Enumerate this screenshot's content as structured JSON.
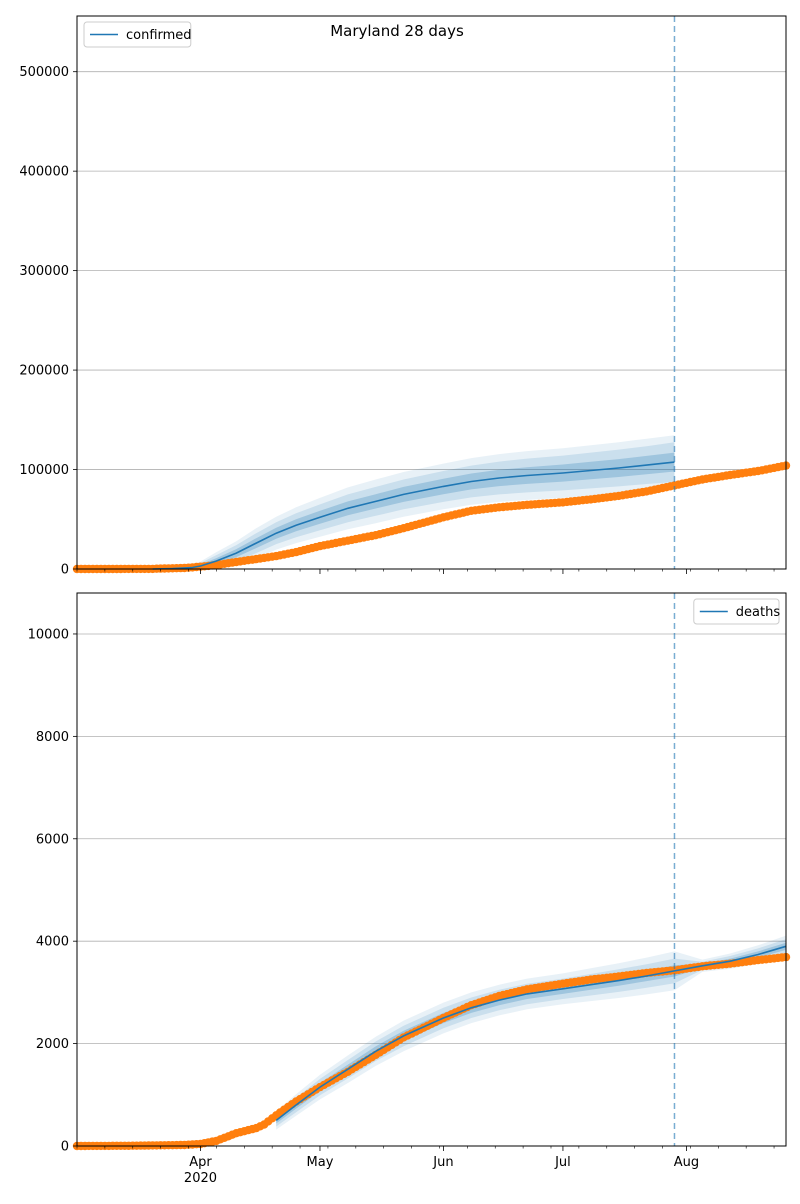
{
  "figure": {
    "title": "Maryland 28 days"
  },
  "chart_data": [
    {
      "type": "line",
      "panel": "top",
      "title": "Maryland 28 days",
      "legend": {
        "label": "confirmed",
        "placement": "top-left"
      },
      "x_axis": {
        "type": "date",
        "range": [
          "2020-03-01",
          "2020-08-26"
        ],
        "tick_labels": [
          "Apr\n2020",
          "May",
          "Jun",
          "Jul",
          "Aug"
        ],
        "tick_dates": [
          "2020-04-01",
          "2020-05-01",
          "2020-06-01",
          "2020-07-01",
          "2020-08-01"
        ]
      },
      "ylim": [
        0,
        556000
      ],
      "yticks": [
        "0",
        "100000",
        "200000",
        "300000",
        "400000",
        "500000"
      ],
      "ytick_values": [
        0,
        100000,
        200000,
        300000,
        400000,
        500000
      ],
      "grid": "horizontal",
      "vline_date": "2020-07-29",
      "colors": {
        "model": "#1f77b4",
        "observed": "#ff7f0e",
        "band": "#1f77b4",
        "vline": "#1f77b4"
      },
      "series": [
        {
          "name": "confirmed",
          "role": "model",
          "dates": [
            "2020-03-20",
            "2020-03-25",
            "2020-03-30",
            "2020-04-01",
            "2020-04-05",
            "2020-04-10",
            "2020-04-15",
            "2020-04-20",
            "2020-04-25",
            "2020-05-01",
            "2020-05-08",
            "2020-05-15",
            "2020-05-22",
            "2020-06-01",
            "2020-06-08",
            "2020-06-15",
            "2020-06-22",
            "2020-07-01",
            "2020-07-08",
            "2020-07-15",
            "2020-07-22",
            "2020-07-29"
          ],
          "values": [
            0,
            500,
            1500,
            3000,
            8000,
            16000,
            26000,
            36000,
            44000,
            52000,
            61000,
            68000,
            75000,
            83000,
            88000,
            91500,
            94000,
            96500,
            99000,
            101500,
            104500,
            107500
          ],
          "band_offsets": [
            [
              0,
              500,
              1000,
              1500,
              3000,
              4000,
              5000,
              5500,
              6000,
              6500,
              7000,
              7200,
              7500,
              7800,
              8000,
              8200,
              8400,
              8600,
              8800,
              9000,
              9200,
              9500
            ],
            [
              0,
              1000,
              2000,
              3000,
              6000,
              8000,
              10000,
              11000,
              12000,
              13000,
              14000,
              14500,
              15000,
              15500,
              16000,
              16500,
              17000,
              17500,
              18000,
              18500,
              19000,
              20000
            ],
            [
              0,
              1500,
              3000,
              4500,
              9000,
              12000,
              15000,
              16500,
              18000,
              19500,
              21000,
              22000,
              22500,
              23000,
              23500,
              24000,
              24500,
              25000,
              25500,
              26000,
              26500,
              27000
            ]
          ]
        },
        {
          "name": "observed confirmed",
          "role": "observed",
          "dates": [
            "2020-03-01",
            "2020-03-10",
            "2020-03-20",
            "2020-03-28",
            "2020-04-01",
            "2020-04-05",
            "2020-04-10",
            "2020-04-15",
            "2020-04-20",
            "2020-04-25",
            "2020-05-01",
            "2020-05-08",
            "2020-05-15",
            "2020-05-22",
            "2020-06-01",
            "2020-06-08",
            "2020-06-15",
            "2020-06-22",
            "2020-07-01",
            "2020-07-08",
            "2020-07-15",
            "2020-07-22",
            "2020-07-29",
            "2020-08-05",
            "2020-08-12",
            "2020-08-19",
            "2020-08-26"
          ],
          "values": [
            0,
            10,
            150,
            990,
            2300,
            4000,
            7000,
            10000,
            13000,
            17000,
            23000,
            28500,
            34000,
            41000,
            52000,
            58500,
            62000,
            64500,
            67000,
            70000,
            73500,
            78000,
            84000,
            90000,
            94500,
            98500,
            104000
          ]
        }
      ]
    },
    {
      "type": "line",
      "panel": "bottom",
      "legend": {
        "label": "deaths",
        "placement": "top-right"
      },
      "x_axis": {
        "type": "date",
        "range": [
          "2020-03-01",
          "2020-08-26"
        ],
        "tick_labels": [
          "Apr\n2020",
          "May",
          "Jun",
          "Jul",
          "Aug"
        ],
        "tick_dates": [
          "2020-04-01",
          "2020-05-01",
          "2020-06-01",
          "2020-07-01",
          "2020-08-01"
        ]
      },
      "ylim": [
        0,
        10800
      ],
      "yticks": [
        "0",
        "2000",
        "4000",
        "6000",
        "8000",
        "10000"
      ],
      "ytick_values": [
        0,
        2000,
        4000,
        6000,
        8000,
        10000
      ],
      "grid": "horizontal",
      "vline_date": "2020-07-29",
      "colors": {
        "model": "#1f77b4",
        "observed": "#ff7f0e",
        "band": "#1f77b4",
        "vline": "#1f77b4"
      },
      "series": [
        {
          "name": "deaths",
          "role": "model",
          "dates": [
            "2020-04-20",
            "2020-04-25",
            "2020-05-01",
            "2020-05-08",
            "2020-05-15",
            "2020-05-22",
            "2020-06-01",
            "2020-06-08",
            "2020-06-15",
            "2020-06-22",
            "2020-07-01",
            "2020-07-08",
            "2020-07-15",
            "2020-07-22",
            "2020-07-29",
            "2020-08-05",
            "2020-08-12",
            "2020-08-19",
            "2020-08-26"
          ],
          "values": [
            500,
            800,
            1150,
            1500,
            1850,
            2150,
            2500,
            2700,
            2850,
            2970,
            3070,
            3150,
            3230,
            3320,
            3420,
            3520,
            3610,
            3740,
            3900
          ],
          "band_offsets": [
            [
              60,
              70,
              80,
              90,
              95,
              100,
              100,
              100,
              100,
              100,
              100,
              100,
              100,
              100,
              110,
              40,
              50,
              60,
              70
            ],
            [
              120,
              140,
              160,
              180,
              190,
              200,
              200,
              200,
              200,
              200,
              200,
              210,
              220,
              230,
              240,
              80,
              100,
              120,
              140
            ],
            [
              180,
              210,
              240,
              270,
              285,
              300,
              300,
              300,
              300,
              300,
              300,
              320,
              340,
              360,
              380,
              120,
              150,
              180,
              210
            ]
          ]
        },
        {
          "name": "observed deaths",
          "role": "observed",
          "dates": [
            "2020-03-01",
            "2020-03-15",
            "2020-03-28",
            "2020-04-01",
            "2020-04-05",
            "2020-04-10",
            "2020-04-15",
            "2020-04-17",
            "2020-04-20",
            "2020-04-25",
            "2020-05-01",
            "2020-05-08",
            "2020-05-15",
            "2020-05-22",
            "2020-06-01",
            "2020-06-08",
            "2020-06-15",
            "2020-06-22",
            "2020-07-01",
            "2020-07-08",
            "2020-07-15",
            "2020-07-22",
            "2020-07-29",
            "2020-08-05",
            "2020-08-12",
            "2020-08-19",
            "2020-08-26"
          ],
          "values": [
            0,
            5,
            20,
            40,
            100,
            250,
            350,
            420,
            600,
            870,
            1150,
            1450,
            1780,
            2120,
            2500,
            2750,
            2930,
            3060,
            3170,
            3250,
            3310,
            3380,
            3430,
            3510,
            3560,
            3630,
            3690
          ]
        }
      ]
    }
  ]
}
